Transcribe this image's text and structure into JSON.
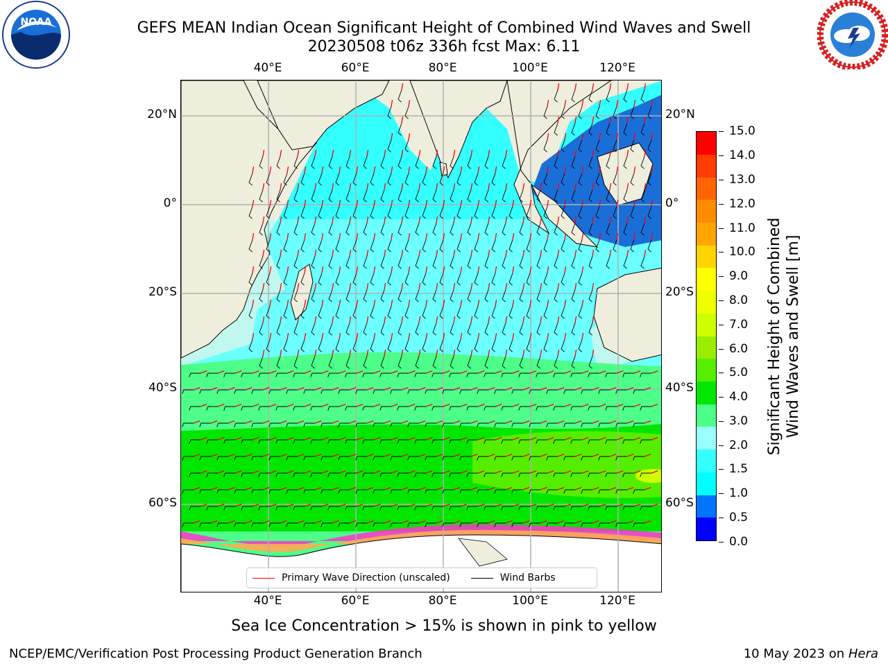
{
  "header": {
    "title_line1": "GEFS MEAN Indian Ocean Significant Height of Combined Wind Waves and Swell",
    "title_line2": "20230508 t06z 336h fcst   Max: 6.11"
  },
  "logos": {
    "left": {
      "name": "NOAA",
      "text": "NOAA",
      "ring_text": "NATIONAL OCEANIC AND ATMOSPHERIC ADMINISTRATION · U.S. DEPARTMENT OF COMMERCE"
    },
    "right": {
      "name": "National Weather Service",
      "ring_text": "NATIONAL WEATHER SERVICE"
    }
  },
  "map": {
    "lon_ticks_top": [
      "40°E",
      "60°E",
      "80°E",
      "100°E",
      "120°E"
    ],
    "lon_ticks_bottom": [
      "40°E",
      "60°E",
      "80°E",
      "100°E",
      "120°E"
    ],
    "lat_ticks_left": [
      "20°N",
      "0°",
      "20°S",
      "40°S",
      "60°S"
    ],
    "lat_ticks_right": [
      "20°N",
      "0°",
      "20°S",
      "40°S",
      "60°S"
    ],
    "colors": {
      "land": "#efeddc",
      "ice_shelf": "#ffffff",
      "grid": "#b0b0b0",
      "wave_arrow": "#ff0000",
      "wind_barb": "#000000"
    },
    "legend": {
      "items": [
        {
          "label": "Primary Wave Direction (unscaled)",
          "color": "#ff0000"
        },
        {
          "label": "Wind Barbs",
          "color": "#000000"
        }
      ]
    }
  },
  "colorbar": {
    "label_line1": "Significant Height of Combined",
    "label_line2": "Wind Waves and Swell [m]",
    "ticks": [
      "15.0",
      "14.0",
      "13.0",
      "12.0",
      "11.0",
      "10.0",
      "9.0",
      "8.0",
      "7.0",
      "6.0",
      "5.0",
      "4.0",
      "3.0",
      "2.0",
      "1.5",
      "1.0",
      "0.5",
      "0.0"
    ],
    "colors": [
      "#0000ff",
      "#0074ff",
      "#00ffff",
      "#33ffff",
      "#99ffff",
      "#4dff88",
      "#00e600",
      "#55ee00",
      "#99ee00",
      "#ccff00",
      "#eeff00",
      "#ffff00",
      "#ffd400",
      "#ffa500",
      "#ff8c00",
      "#ff6400",
      "#ff3c00",
      "#ff0000"
    ]
  },
  "caption": "Sea Ice Concentration > 15% is shown in pink to yellow",
  "footer": {
    "left": "NCEP/EMC/Verification Post Processing Product Generation Branch",
    "right_prefix": "10 May 2023 on",
    "right_host": "Hera"
  }
}
